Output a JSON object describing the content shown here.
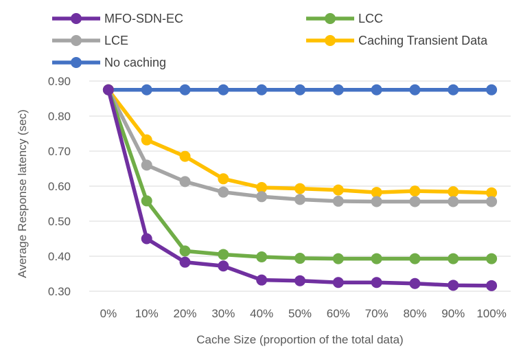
{
  "chart_data": {
    "type": "line",
    "title": "",
    "xlabel": "Cache Size (proportion of the total data)",
    "ylabel": "Average Response latency (sec)",
    "categories": [
      "0%",
      "10%",
      "20%",
      "30%",
      "40%",
      "50%",
      "60%",
      "70%",
      "80%",
      "90%",
      "100%"
    ],
    "ylim": [
      0.3,
      0.9
    ],
    "yticks": [
      "0.30",
      "0.40",
      "0.50",
      "0.60",
      "0.70",
      "0.80",
      "0.90"
    ],
    "grid": true,
    "legend_position": "top",
    "series": [
      {
        "name": "MFO-SDN-EC",
        "color": "#7030A0",
        "values": [
          0.875,
          0.45,
          0.383,
          0.372,
          0.332,
          0.33,
          0.325,
          0.325,
          0.322,
          0.317,
          0.316
        ]
      },
      {
        "name": "LCC",
        "color": "#70AD47",
        "values": [
          0.875,
          0.558,
          0.415,
          0.405,
          0.398,
          0.394,
          0.393,
          0.393,
          0.393,
          0.393,
          0.393
        ]
      },
      {
        "name": "LCE",
        "color": "#A5A5A5",
        "values": [
          0.875,
          0.66,
          0.613,
          0.583,
          0.57,
          0.562,
          0.557,
          0.556,
          0.556,
          0.556,
          0.556
        ]
      },
      {
        "name": "Caching Transient Data",
        "color": "#FFC000",
        "values": [
          0.875,
          0.732,
          0.685,
          0.621,
          0.596,
          0.593,
          0.589,
          0.582,
          0.586,
          0.584,
          0.581
        ]
      },
      {
        "name": "No caching",
        "color": "#4472C4",
        "values": [
          0.875,
          0.875,
          0.875,
          0.875,
          0.875,
          0.875,
          0.875,
          0.875,
          0.875,
          0.875,
          0.875
        ]
      }
    ]
  }
}
